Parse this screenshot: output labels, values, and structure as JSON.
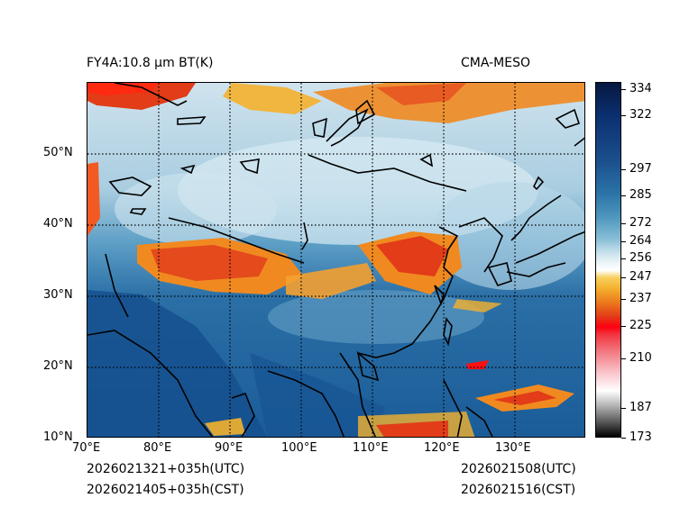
{
  "title_left": "FY4A:10.8 µm BT(K)",
  "title_right": "CMA-MESO",
  "time_left_utc": "2026021321+035h(UTC)",
  "time_left_cst": "2026021405+035h(CST)",
  "time_right_utc": "2026021508(UTC)",
  "time_right_cst": "2026021516(CST)",
  "lat_labels": [
    "50°N",
    "40°N",
    "30°N",
    "20°N",
    "10°N"
  ],
  "lon_labels": [
    "70°E",
    "80°E",
    "90°E",
    "100°E",
    "110°E",
    "120°E",
    "130°E"
  ],
  "colorbar_labels": [
    "334",
    "322",
    "297",
    "285",
    "272",
    "264",
    "256",
    "247",
    "237",
    "225",
    "210",
    "187",
    "173"
  ]
}
